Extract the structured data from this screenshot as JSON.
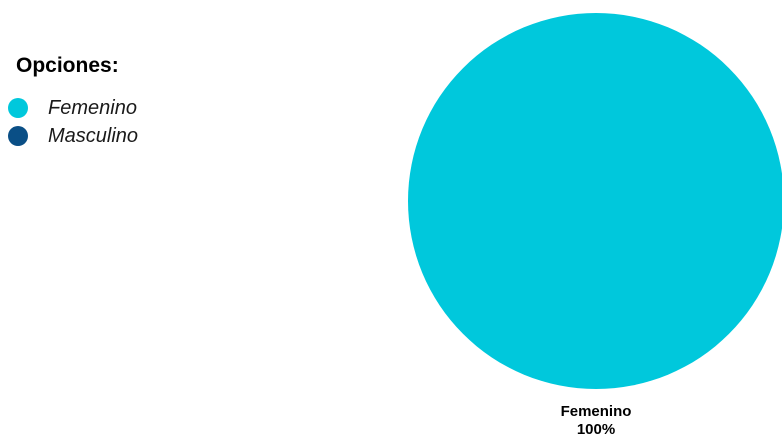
{
  "legend": {
    "title": "Opciones:"
  },
  "chart_data": {
    "type": "pie",
    "categories": [
      "Femenino",
      "Masculino"
    ],
    "values": [
      100,
      0
    ],
    "colors": [
      "#00C8DC",
      "#0A4F86"
    ],
    "data_labels": [
      {
        "category": "Femenino",
        "percent": "100%"
      }
    ],
    "legend": [
      "Femenino",
      "Masculino"
    ],
    "legend_position": "top-left"
  }
}
